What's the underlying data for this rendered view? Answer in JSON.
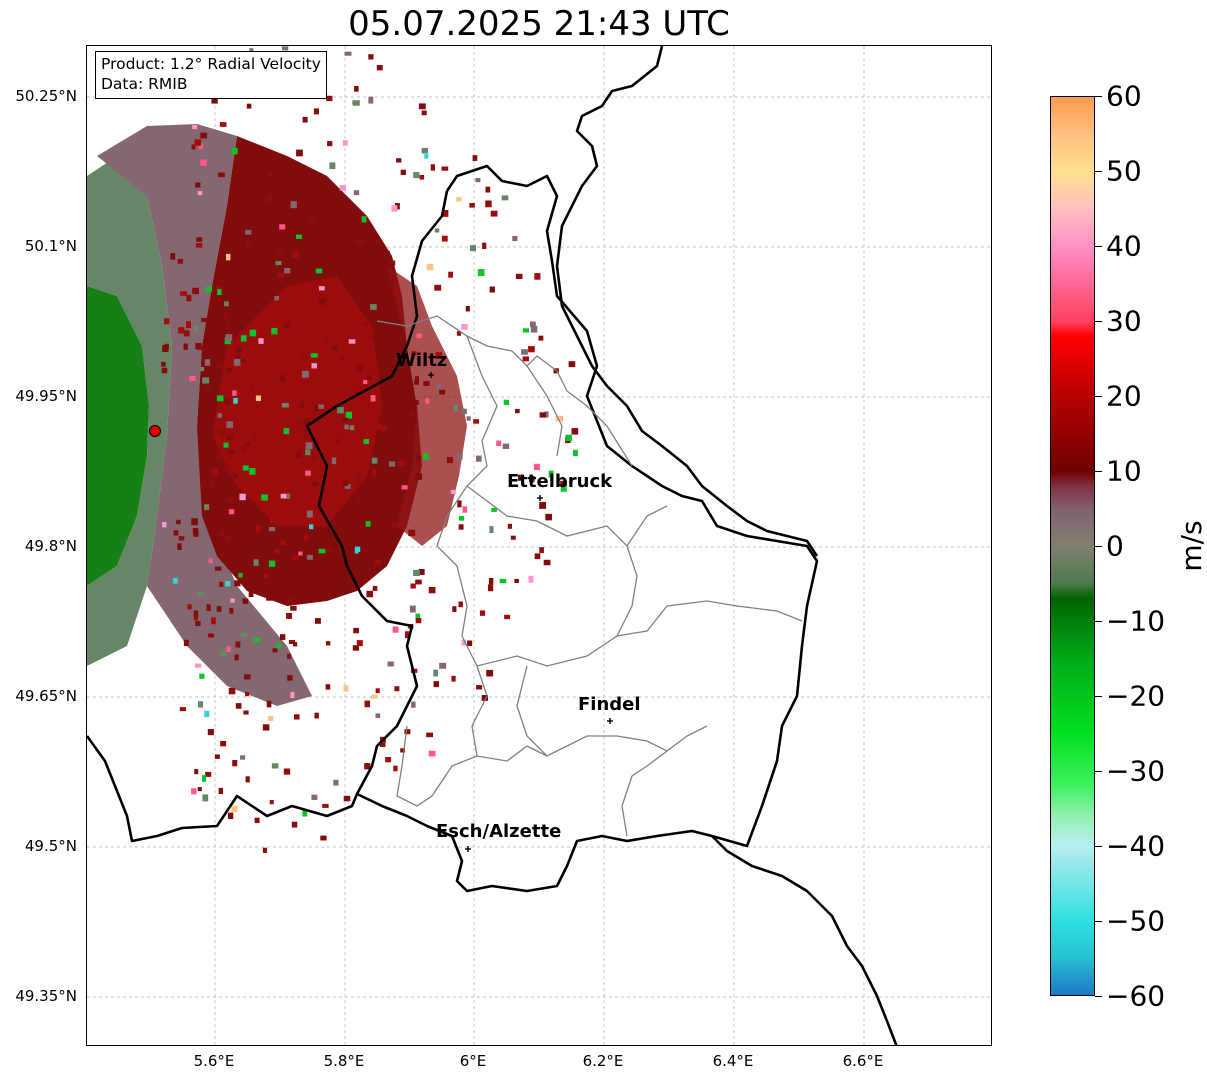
{
  "title": "05.07.2025 21:43 UTC",
  "info": {
    "product": "Product: 1.2° Radial Velocity",
    "source": "Data: RMIB"
  },
  "lat_ticks": [
    "50.25°N",
    "50.1°N",
    "49.95°N",
    "49.8°N",
    "49.65°N",
    "49.5°N",
    "49.35°N"
  ],
  "lon_ticks": [
    "5.6°E",
    "5.8°E",
    "6°E",
    "6.2°E",
    "6.4°E",
    "6.6°E"
  ],
  "cities": [
    {
      "name": "Wiltz"
    },
    {
      "name": "Ettelbruck"
    },
    {
      "name": "Findel"
    },
    {
      "name": "Esch/Alzette"
    }
  ],
  "colorbar": {
    "unit": "m/s",
    "min": -60,
    "max": 60,
    "tick_labels": [
      "60",
      "50",
      "40",
      "30",
      "20",
      "10",
      "0",
      "−10",
      "−20",
      "−30",
      "−40",
      "−50",
      "−60"
    ],
    "stops": [
      {
        "value": -60,
        "color": "#1f78c8"
      },
      {
        "value": -55,
        "color": "#28c0d0"
      },
      {
        "value": -50,
        "color": "#30e0e0"
      },
      {
        "value": -42,
        "color": "#9ee9ec"
      },
      {
        "value": -40,
        "color": "#b8f0f0"
      },
      {
        "value": -36,
        "color": "#90f0b0"
      },
      {
        "value": -32,
        "color": "#40f060"
      },
      {
        "value": -25,
        "color": "#00e020"
      },
      {
        "value": -15,
        "color": "#00a818"
      },
      {
        "value": -7,
        "color": "#006400"
      },
      {
        "value": -5,
        "color": "#4e7a4e"
      },
      {
        "value": 0,
        "color": "#808070"
      },
      {
        "value": 5,
        "color": "#806070"
      },
      {
        "value": 8,
        "color": "#803040"
      },
      {
        "value": 10,
        "color": "#700000"
      },
      {
        "value": 20,
        "color": "#b80000"
      },
      {
        "value": 28,
        "color": "#ff0000"
      },
      {
        "value": 30,
        "color": "#ff4060"
      },
      {
        "value": 40,
        "color": "#ff90c8"
      },
      {
        "value": 45,
        "color": "#ffc0c0"
      },
      {
        "value": 50,
        "color": "#ffe090"
      },
      {
        "value": 55,
        "color": "#ffc080"
      },
      {
        "value": 60,
        "color": "#ff9a50"
      }
    ]
  },
  "colors": {
    "radar_site": "#e00000",
    "border_national": "#000000",
    "border_canton": "#808080",
    "grid": "#b0b0b0"
  }
}
